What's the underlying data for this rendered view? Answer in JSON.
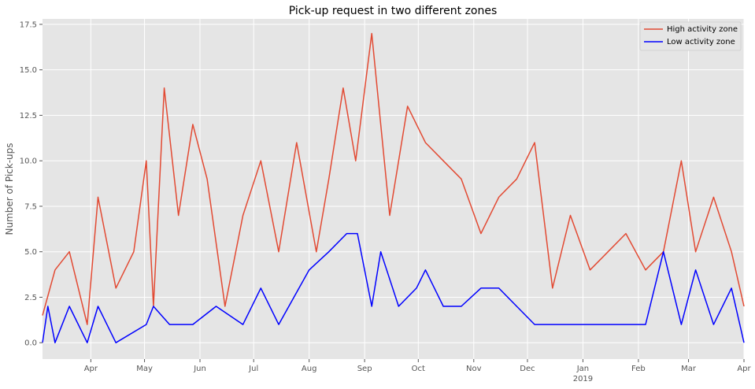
{
  "chart_data": {
    "type": "line",
    "title": "Pick-up request in two different zones",
    "xlabel": "",
    "ylabel": "Number of Pick-ups",
    "ylim": [
      -0.9,
      17.8
    ],
    "xlim": [
      "2018-03-05",
      "2019-04-01"
    ],
    "grid": true,
    "legend_position": "top-right",
    "y_ticks": [
      "0.0",
      "2.5",
      "5.0",
      "7.5",
      "10.0",
      "12.5",
      "15.0",
      "17.5"
    ],
    "x_ticks": [
      {
        "date": "2018-04-01",
        "label": "Apr"
      },
      {
        "date": "2018-05-01",
        "label": "May"
      },
      {
        "date": "2018-06-01",
        "label": "Jun"
      },
      {
        "date": "2018-07-01",
        "label": "Jul"
      },
      {
        "date": "2018-08-01",
        "label": "Aug"
      },
      {
        "date": "2018-09-01",
        "label": "Sep"
      },
      {
        "date": "2018-10-01",
        "label": "Oct"
      },
      {
        "date": "2018-11-01",
        "label": "Nov"
      },
      {
        "date": "2018-12-01",
        "label": "Dec"
      },
      {
        "date": "2019-01-01",
        "label": "Jan",
        "sublabel": "2019"
      },
      {
        "date": "2019-02-01",
        "label": "Feb"
      },
      {
        "date": "2019-03-01",
        "label": "Mar"
      },
      {
        "date": "2019-04-01",
        "label": "Apr"
      }
    ],
    "series": [
      {
        "name": "High activity zone",
        "color": "#E24A33",
        "x": [
          "2018-03-05",
          "2018-03-12",
          "2018-03-20",
          "2018-03-30",
          "2018-04-05",
          "2018-04-15",
          "2018-04-25",
          "2018-05-02",
          "2018-05-06",
          "2018-05-12",
          "2018-05-20",
          "2018-05-28",
          "2018-06-05",
          "2018-06-15",
          "2018-06-25",
          "2018-07-05",
          "2018-07-15",
          "2018-07-25",
          "2018-08-05",
          "2018-08-12",
          "2018-08-20",
          "2018-08-27",
          "2018-09-05",
          "2018-09-15",
          "2018-09-25",
          "2018-10-05",
          "2018-10-15",
          "2018-10-25",
          "2018-11-05",
          "2018-11-15",
          "2018-11-25",
          "2018-12-05",
          "2018-12-15",
          "2018-12-25",
          "2019-01-05",
          "2019-01-15",
          "2019-01-25",
          "2019-02-05",
          "2019-02-15",
          "2019-02-25",
          "2019-03-05",
          "2019-03-15",
          "2019-03-25",
          "2019-04-01"
        ],
        "values": [
          1.5,
          4,
          5,
          1,
          8,
          3,
          5,
          10,
          2,
          14,
          7,
          12,
          9,
          2,
          7,
          10,
          5,
          11,
          5,
          9,
          14,
          10,
          17,
          7,
          13,
          11,
          10,
          9,
          6,
          8,
          9,
          11,
          3,
          7,
          4,
          5,
          6,
          4,
          5,
          10,
          5,
          8,
          5,
          2
        ]
      },
      {
        "name": "Low activity zone",
        "color": "#0000FF",
        "x": [
          "2018-03-05",
          "2018-03-08",
          "2018-03-12",
          "2018-03-20",
          "2018-03-30",
          "2018-04-05",
          "2018-04-15",
          "2018-05-02",
          "2018-05-06",
          "2018-05-15",
          "2018-05-28",
          "2018-06-10",
          "2018-06-25",
          "2018-07-05",
          "2018-07-15",
          "2018-08-01",
          "2018-08-12",
          "2018-08-22",
          "2018-08-28",
          "2018-09-05",
          "2018-09-10",
          "2018-09-20",
          "2018-09-30",
          "2018-10-05",
          "2018-10-15",
          "2018-10-25",
          "2018-11-05",
          "2018-11-15",
          "2018-11-25",
          "2018-12-05",
          "2018-12-15",
          "2018-12-25",
          "2019-01-05",
          "2019-01-15",
          "2019-01-25",
          "2019-02-05",
          "2019-02-15",
          "2019-02-25",
          "2019-03-05",
          "2019-03-15",
          "2019-03-25",
          "2019-04-01"
        ],
        "values": [
          0,
          2,
          0,
          2,
          0,
          2,
          0,
          1,
          2,
          1,
          1,
          2,
          1,
          3,
          1,
          4,
          5,
          6,
          6,
          2,
          5,
          2,
          3,
          4,
          2,
          2,
          3,
          3,
          2,
          1,
          1,
          1,
          1,
          1,
          1,
          1,
          5,
          1,
          4,
          1,
          3,
          0
        ]
      }
    ]
  }
}
